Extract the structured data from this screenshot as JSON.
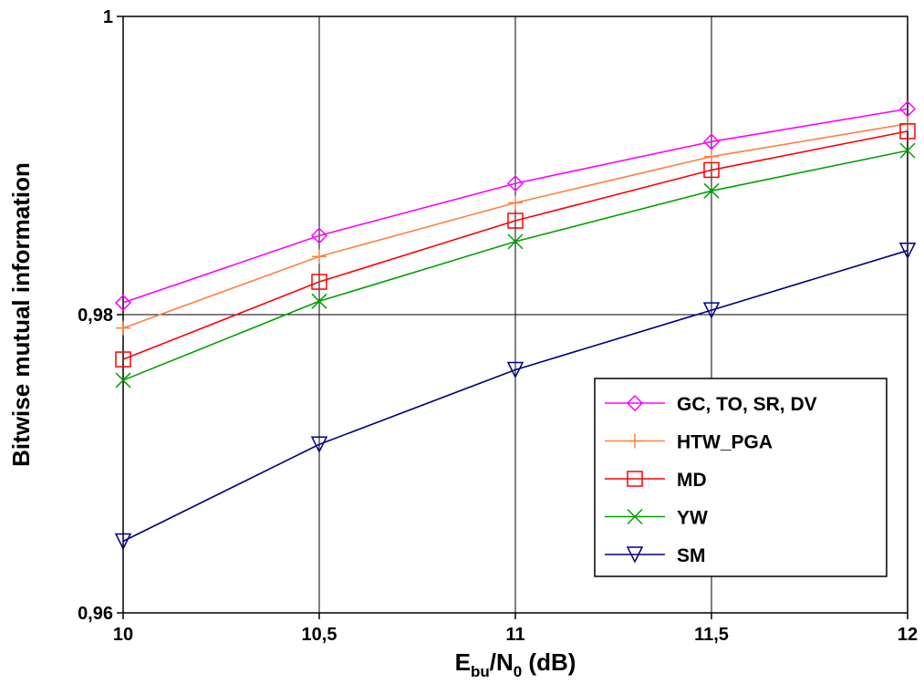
{
  "chart_data": {
    "type": "line",
    "title": "",
    "xlabel": "E_bu/N_0 (dB)",
    "xlabel_parts": {
      "e": "E",
      "e_sub": "bu",
      "slash_n": "/N",
      "n_sub": "0",
      "units": " (dB)"
    },
    "ylabel": "Bitwise mutual information",
    "x": [
      10,
      10.5,
      11,
      11.5,
      12
    ],
    "x_tick_labels": [
      "10",
      "10,5",
      "11",
      "11,5",
      "12"
    ],
    "xlim": [
      10,
      12
    ],
    "ylim": [
      0.96,
      1.0
    ],
    "y_ticks": [
      0.96,
      0.98,
      1.0
    ],
    "y_tick_labels": [
      "0,96",
      "0,98",
      "1"
    ],
    "grid": true,
    "legend_position": "bottom-right",
    "series": [
      {
        "name": "GC, TO, SR, DV",
        "color": "#ff00ff",
        "marker": "diamond",
        "values": [
          0.9808,
          0.9853,
          0.9888,
          0.9916,
          0.9938
        ]
      },
      {
        "name": "HTW_PGA",
        "color": "#ff8040",
        "marker": "plus",
        "values": [
          0.9791,
          0.9839,
          0.9875,
          0.9906,
          0.9928
        ]
      },
      {
        "name": "MD",
        "color": "#ff0000",
        "marker": "square",
        "values": [
          0.977,
          0.9822,
          0.9863,
          0.9897,
          0.9923
        ]
      },
      {
        "name": "YW",
        "color": "#00a000",
        "marker": "x",
        "values": [
          0.9756,
          0.9809,
          0.9849,
          0.9883,
          0.991
        ]
      },
      {
        "name": "SM",
        "color": "#000080",
        "marker": "triangle-down",
        "values": [
          0.9648,
          0.9713,
          0.9763,
          0.9803,
          0.9843
        ]
      }
    ]
  }
}
